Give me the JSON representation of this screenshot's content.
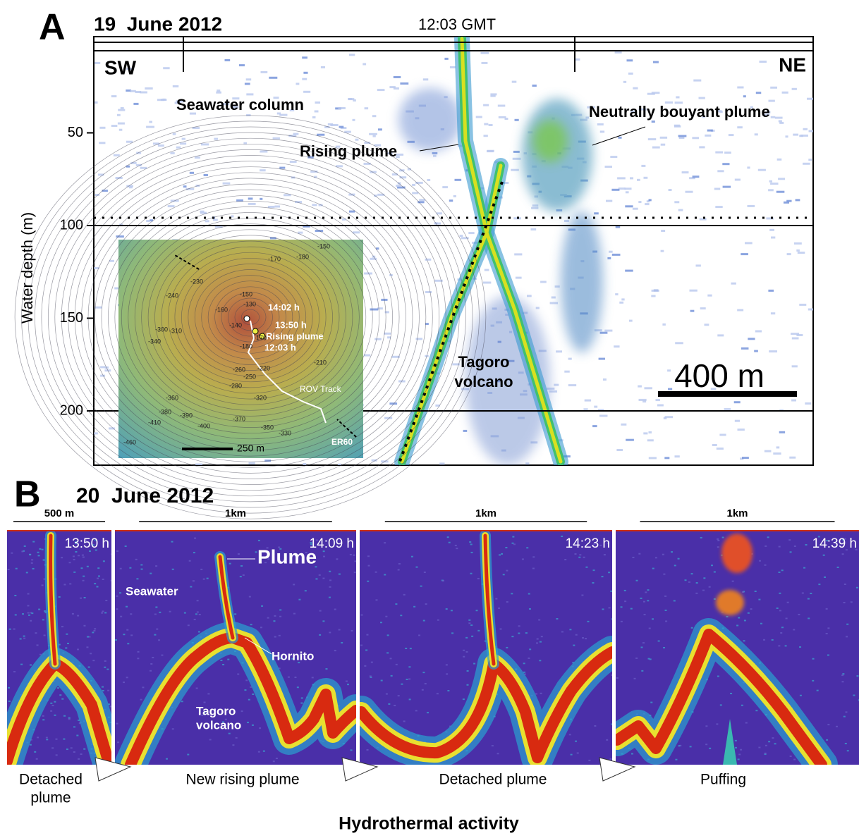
{
  "panel_a": {
    "label": "A",
    "date": "19  June 2012",
    "time": "12:03 GMT",
    "y_axis_label": "Water depth (m)",
    "yticks": [
      50,
      100,
      150,
      200
    ],
    "direction_left": "SW",
    "direction_right": "NE",
    "annotations": {
      "seawater": "Seawater column",
      "rising": "Rising plume",
      "neutral": "Neutrally bouyant plume",
      "volcano": [
        "Tagoro",
        "volcano"
      ]
    },
    "scale_bar": "400 m",
    "inset": {
      "times": [
        "14:02 h",
        "13:50 h",
        "12:03 h"
      ],
      "rising": "Rising plume",
      "track": "ROV Track",
      "sensor": "ER60",
      "scale_bar": "250 m",
      "contour_labels": [
        -150,
        -180,
        -170,
        -230,
        -240,
        -160,
        -150,
        -130,
        -140,
        -170,
        -180,
        -300,
        -310,
        -340,
        -220,
        -210,
        -260,
        -250,
        -280,
        -320,
        -360,
        -380,
        -390,
        -400,
        -410,
        -370,
        -350,
        -330,
        -460
      ]
    }
  },
  "panel_b": {
    "label": "B",
    "date": "20  June 2012",
    "panels": [
      {
        "scale": "500 m",
        "time": "13:50 h",
        "caption": [
          "Detached",
          "plume"
        ]
      },
      {
        "scale": "1km",
        "time": "14:09 h",
        "caption": [
          "New rising plume"
        ],
        "annotations": {
          "plume": "Plume",
          "seawater": "Seawater",
          "hornito": "Hornito",
          "volcano": [
            "Tagoro",
            "volcano"
          ]
        }
      },
      {
        "scale": "1km",
        "time": "14:23 h",
        "caption": [
          "Detached plume"
        ]
      },
      {
        "scale": "1km",
        "time": "14:39 h",
        "caption": [
          "Puffing"
        ]
      }
    ],
    "footer": "Hydrothermal activity"
  }
}
